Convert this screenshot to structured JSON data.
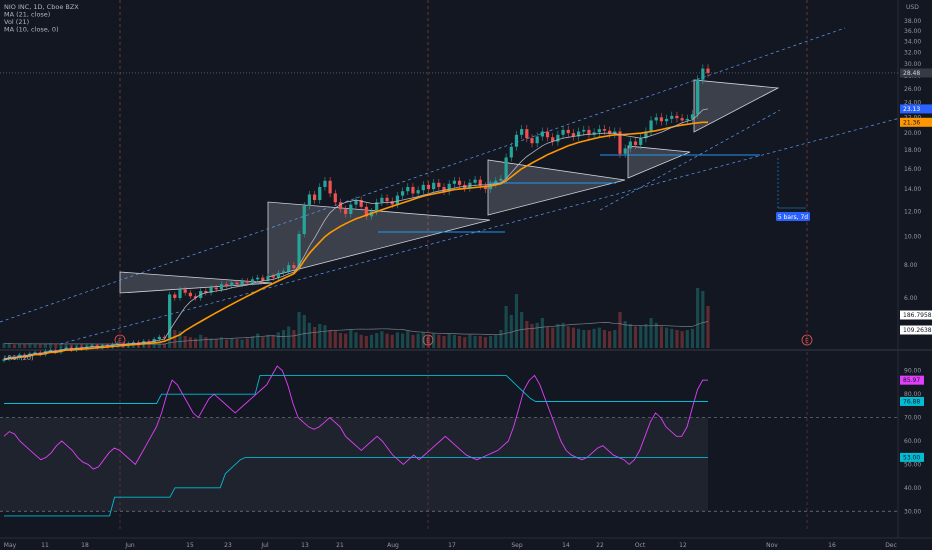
{
  "header": {
    "legend": [
      "NIO INC, 1D, Cboe BZX",
      "MA (21, close)",
      "Vol (21)",
      "MA (10, close, 0)"
    ],
    "currency": "USD",
    "indicator_title": "LRSI (20)"
  },
  "colors": {
    "background": "#131722",
    "up": "#26a69a",
    "down": "#ef5350",
    "ma21": "#ff9800",
    "ma10": "#2196f3",
    "rsi": "#e040fb",
    "band": "#00bcd4",
    "triangle": "#d1d4dc",
    "price_tag": "#2962ff"
  },
  "price_tags": [
    {
      "value": "28.48",
      "bg": "#363a45",
      "fg": "#d1d4dc",
      "at": 28.48
    },
    {
      "value": "23.13",
      "bg": "#2962ff",
      "fg": "#ffffff",
      "at": 23.13
    },
    {
      "value": "21.36",
      "bg": "#ff9800",
      "fg": "#131722",
      "at": 21.36
    },
    {
      "value": "186.7958M",
      "bg": "#ffffff",
      "fg": "#131722",
      "at": 5.0
    },
    {
      "value": "109.2638M",
      "bg": "#ffffff",
      "fg": "#131722",
      "at": 3.8
    }
  ],
  "rsi_tags": [
    {
      "value": "85.97",
      "bg": "#e040fb",
      "fg": "#131722",
      "at": 85.97
    },
    {
      "value": "76.88",
      "bg": "#00bcd4",
      "fg": "#131722",
      "at": 76.88
    },
    {
      "value": "53.00",
      "bg": "#00bcd4",
      "fg": "#131722",
      "at": 53.0
    }
  ],
  "measure_label": "5 bars, 7d",
  "event_marker": "E",
  "chart_data": [
    {
      "type": "candlestick",
      "title": "NIO INC, 1D, Cboe BZX",
      "y_ticks": [
        6.0,
        8.0,
        10.0,
        12.0,
        14.0,
        16.0,
        18.0,
        20.0,
        22.0,
        24.0,
        26.0,
        28.0,
        30.0,
        32.0,
        34.0,
        36.0,
        38.0
      ],
      "y_tick_labels": [
        "6.00",
        "8.00",
        "10.00",
        "12.00",
        "14.00",
        "16.00",
        "18.00",
        "20.00",
        "22.00",
        "24.00",
        "26.00",
        "28.00",
        "30.00",
        "32.00",
        "34.00",
        "36.00",
        "38.00"
      ],
      "x_tick_labels": [
        "May",
        "11",
        "18",
        "Jun",
        "15",
        "23",
        "Jul",
        "13",
        "21",
        "Aug",
        "17",
        "Sep",
        "14",
        "22",
        "Oct",
        "12",
        "Nov",
        "16",
        "Dec"
      ],
      "last_close": 28.48,
      "close": [
        3.0,
        3.1,
        3.05,
        3.2,
        3.15,
        3.25,
        3.3,
        3.2,
        3.35,
        3.4,
        3.3,
        3.45,
        3.5,
        3.4,
        3.5,
        3.45,
        3.55,
        3.6,
        3.5,
        3.6,
        3.55,
        3.65,
        3.7,
        3.6,
        3.7,
        3.75,
        3.65,
        3.8,
        3.75,
        3.9,
        4.0,
        3.95,
        6.2,
        6.0,
        6.5,
        6.3,
        6.1,
        6.0,
        6.4,
        6.3,
        6.6,
        6.5,
        6.8,
        6.7,
        6.9,
        6.8,
        7.0,
        6.9,
        7.1,
        7.2,
        7.0,
        7.3,
        7.2,
        7.5,
        7.6,
        8.0,
        7.8,
        10.2,
        12.5,
        13.5,
        13.0,
        14.2,
        14.8,
        13.6,
        12.8,
        12.2,
        11.8,
        12.6,
        13.0,
        12.4,
        11.6,
        12.0,
        12.8,
        13.2,
        12.9,
        12.6,
        13.4,
        13.8,
        14.2,
        13.6,
        13.9,
        14.4,
        14.0,
        14.6,
        14.2,
        13.8,
        14.5,
        14.8,
        14.4,
        14.1,
        14.6,
        14.9,
        14.3,
        14.0,
        14.5,
        14.8,
        15.0,
        17.2,
        18.4,
        19.8,
        20.5,
        19.4,
        18.8,
        19.6,
        20.2,
        19.5,
        19.0,
        19.8,
        20.4,
        20.0,
        19.6,
        20.2,
        20.4,
        19.8,
        20.1,
        20.5,
        20.3,
        19.9,
        20.2,
        17.6,
        18.2,
        19.0,
        18.6,
        19.4,
        20.2,
        21.6,
        22.0,
        21.5,
        21.8,
        22.2,
        21.9,
        21.6,
        21.8,
        22.4,
        27.4,
        29.2,
        28.48
      ],
      "ma21": [
        3.0,
        3.05,
        3.05,
        3.1,
        3.1,
        3.15,
        3.2,
        3.2,
        3.25,
        3.3,
        3.3,
        3.35,
        3.4,
        3.4,
        3.42,
        3.44,
        3.46,
        3.48,
        3.5,
        3.52,
        3.54,
        3.56,
        3.58,
        3.6,
        3.62,
        3.64,
        3.66,
        3.68,
        3.7,
        3.72,
        3.75,
        3.8,
        3.9,
        4.0,
        4.1,
        4.3,
        4.45,
        4.6,
        4.75,
        4.9,
        5.05,
        5.2,
        5.35,
        5.5,
        5.65,
        5.8,
        5.95,
        6.1,
        6.25,
        6.4,
        6.55,
        6.7,
        6.85,
        7.0,
        7.15,
        7.3,
        7.45,
        7.8,
        8.3,
        8.8,
        9.2,
        9.6,
        10.0,
        10.3,
        10.55,
        10.8,
        11.0,
        11.2,
        11.4,
        11.55,
        11.7,
        11.85,
        12.0,
        12.15,
        12.3,
        12.45,
        12.6,
        12.75,
        12.9,
        13.05,
        13.2,
        13.35,
        13.45,
        13.55,
        13.65,
        13.75,
        13.85,
        13.95,
        14.0,
        14.05,
        14.1,
        14.15,
        14.2,
        14.25,
        14.3,
        14.4,
        14.5,
        14.8,
        15.2,
        15.6,
        16.0,
        16.3,
        16.6,
        16.9,
        17.2,
        17.5,
        17.75,
        18.0,
        18.25,
        18.5,
        18.7,
        18.9,
        19.05,
        19.2,
        19.35,
        19.5,
        19.6,
        19.7,
        19.8,
        19.8,
        19.85,
        19.9,
        19.95,
        20.0,
        20.1,
        20.2,
        20.3,
        20.45,
        20.6,
        20.75,
        20.9,
        21.0,
        21.1,
        21.2,
        21.3,
        21.36,
        21.36
      ],
      "ma10": [
        3.0,
        3.05,
        3.08,
        3.12,
        3.15,
        3.2,
        3.25,
        3.25,
        3.3,
        3.35,
        3.35,
        3.4,
        3.45,
        3.45,
        3.48,
        3.5,
        3.52,
        3.55,
        3.55,
        3.58,
        3.6,
        3.62,
        3.65,
        3.65,
        3.68,
        3.7,
        3.7,
        3.75,
        3.75,
        3.8,
        3.85,
        3.9,
        4.3,
        4.7,
        5.1,
        5.5,
        5.8,
        6.0,
        6.2,
        6.3,
        6.35,
        6.4,
        6.45,
        6.5,
        6.6,
        6.65,
        6.7,
        6.75,
        6.85,
        6.95,
        7.0,
        7.05,
        7.1,
        7.2,
        7.3,
        7.45,
        7.55,
        8.0,
        8.6,
        9.3,
        9.9,
        10.6,
        11.3,
        11.9,
        12.3,
        12.6,
        12.8,
        12.9,
        13.0,
        12.9,
        12.8,
        12.7,
        12.7,
        12.75,
        12.8,
        12.8,
        12.9,
        13.0,
        13.1,
        13.2,
        13.3,
        13.45,
        13.55,
        13.7,
        13.8,
        13.9,
        14.0,
        14.1,
        14.2,
        14.25,
        14.3,
        14.35,
        14.4,
        14.4,
        14.45,
        14.5,
        14.6,
        15.0,
        15.6,
        16.2,
        16.8,
        17.3,
        17.7,
        18.1,
        18.5,
        18.8,
        19.0,
        19.2,
        19.4,
        19.5,
        19.6,
        19.7,
        19.8,
        19.85,
        19.9,
        19.95,
        20.0,
        20.0,
        20.0,
        19.8,
        19.7,
        19.6,
        19.5,
        19.4,
        19.5,
        19.7,
        19.9,
        20.1,
        20.4,
        20.7,
        21.0,
        21.3,
        21.5,
        21.7,
        22.3,
        23.0,
        23.13
      ],
      "volume_rel": [
        0.08,
        0.07,
        0.06,
        0.07,
        0.06,
        0.08,
        0.07,
        0.06,
        0.07,
        0.08,
        0.06,
        0.07,
        0.07,
        0.06,
        0.06,
        0.07,
        0.06,
        0.07,
        0.06,
        0.06,
        0.07,
        0.06,
        0.07,
        0.06,
        0.06,
        0.07,
        0.06,
        0.07,
        0.06,
        0.07,
        0.08,
        0.07,
        0.55,
        0.3,
        0.28,
        0.2,
        0.18,
        0.16,
        0.22,
        0.18,
        0.16,
        0.15,
        0.18,
        0.14,
        0.16,
        0.15,
        0.14,
        0.16,
        0.2,
        0.24,
        0.18,
        0.22,
        0.2,
        0.26,
        0.3,
        0.36,
        0.3,
        0.6,
        0.55,
        0.42,
        0.35,
        0.4,
        0.38,
        0.3,
        0.28,
        0.25,
        0.24,
        0.3,
        0.26,
        0.22,
        0.2,
        0.22,
        0.25,
        0.28,
        0.24,
        0.22,
        0.26,
        0.24,
        0.28,
        0.22,
        0.24,
        0.26,
        0.22,
        0.24,
        0.22,
        0.2,
        0.24,
        0.22,
        0.2,
        0.18,
        0.22,
        0.2,
        0.2,
        0.18,
        0.2,
        0.22,
        0.3,
        0.7,
        0.55,
        0.9,
        0.6,
        0.45,
        0.4,
        0.42,
        0.5,
        0.36,
        0.34,
        0.4,
        0.42,
        0.36,
        0.34,
        0.32,
        0.3,
        0.3,
        0.32,
        0.34,
        0.3,
        0.28,
        0.3,
        0.6,
        0.45,
        0.4,
        0.36,
        0.38,
        0.4,
        0.5,
        0.42,
        0.36,
        0.34,
        0.32,
        0.3,
        0.28,
        0.3,
        0.32,
        1.0,
        0.95,
        0.7
      ]
    },
    {
      "type": "line",
      "title": "LRSI (20)",
      "y_ticks": [
        30,
        40,
        50,
        60,
        70,
        80,
        90
      ],
      "y_tick_labels": [
        "30.00",
        "40.00",
        "50.00",
        "60.00",
        "70.00",
        "80.00",
        "90.00"
      ],
      "ylim": [
        22,
        98
      ],
      "levels": [
        70,
        30
      ],
      "series": [
        {
          "values": [
            62,
            64,
            63,
            60,
            58,
            56,
            54,
            52,
            53,
            55,
            58,
            60,
            58,
            56,
            53,
            51,
            50,
            48,
            49,
            52,
            55,
            57,
            56,
            54,
            52,
            50,
            54,
            58,
            62,
            66,
            72,
            80,
            86,
            84,
            80,
            76,
            72,
            70,
            74,
            78,
            80,
            78,
            76,
            74,
            72,
            74,
            76,
            78,
            80,
            82,
            84,
            88,
            92,
            90,
            84,
            76,
            70,
            68,
            66,
            65,
            66,
            68,
            70,
            68,
            66,
            62,
            60,
            58,
            56,
            58,
            60,
            62,
            60,
            57,
            54,
            52,
            50,
            52,
            54,
            52,
            54,
            56,
            58,
            60,
            62,
            60,
            58,
            56,
            54,
            53,
            52,
            53,
            54,
            55,
            56,
            58,
            60,
            66,
            74,
            82,
            86,
            88,
            84,
            78,
            72,
            66,
            60,
            56,
            54,
            53,
            52,
            53,
            55,
            57,
            58,
            56,
            54,
            53,
            52,
            50,
            52,
            56,
            62,
            68,
            72,
            70,
            66,
            64,
            62,
            62,
            66,
            74,
            82,
            86,
            85.97
          ]
        },
        {
          "values": [
            76,
            76,
            76,
            76,
            76,
            76,
            76,
            76,
            76,
            76,
            76,
            76,
            76,
            76,
            76,
            76,
            76,
            76,
            76,
            76,
            76,
            76,
            76,
            76,
            76,
            76,
            76,
            76,
            76,
            76,
            76,
            76,
            80,
            80,
            80,
            80,
            80,
            80,
            80,
            80,
            80,
            80,
            80,
            80,
            80,
            80,
            80,
            80,
            80,
            80,
            80,
            80,
            88,
            88,
            88,
            88,
            88,
            88,
            88,
            88,
            88,
            88,
            88,
            88,
            88,
            88,
            88,
            88,
            88,
            88,
            88,
            88,
            88,
            88,
            88,
            88,
            88,
            88,
            88,
            88,
            88,
            88,
            88,
            88,
            88,
            88,
            88,
            88,
            88,
            88,
            88,
            88,
            88,
            88,
            88,
            88,
            88,
            88,
            88,
            88,
            88,
            88,
            88,
            86,
            84,
            82,
            80,
            78,
            76.88,
            76.88,
            76.88,
            76.88,
            76.88,
            76.88,
            76.88,
            76.88,
            76.88,
            76.88,
            76.88,
            76.88,
            76.88,
            76.88,
            76.88,
            76.88,
            76.88,
            76.88,
            76.88,
            76.88,
            76.88,
            76.88,
            76.88,
            76.88,
            76.88,
            76.88,
            76.88,
            76.88,
            76.88,
            76.88,
            76.88,
            76.88,
            76.88,
            76.88,
            76.88,
            76.88
          ]
        },
        {
          "values": [
            28,
            28,
            28,
            28,
            28,
            28,
            28,
            28,
            28,
            28,
            28,
            28,
            28,
            28,
            28,
            28,
            28,
            28,
            28,
            28,
            28,
            28,
            36,
            36,
            36,
            36,
            36,
            36,
            36,
            36,
            36,
            36,
            36,
            36,
            40,
            40,
            40,
            40,
            40,
            40,
            40,
            40,
            40,
            40,
            46,
            48,
            50,
            52,
            53,
            53,
            53,
            53,
            53,
            53,
            53,
            53,
            53,
            53,
            53,
            53,
            53,
            53,
            53,
            53,
            53,
            53,
            53,
            53,
            53,
            53,
            53,
            53,
            53,
            53,
            53,
            53,
            53,
            53,
            53,
            53,
            53,
            53,
            53,
            53,
            53,
            53,
            53,
            53,
            53,
            53,
            53,
            53,
            53,
            53,
            53,
            53,
            53,
            53,
            53,
            53,
            53,
            53,
            53,
            53,
            53,
            53,
            53,
            53,
            53,
            53,
            53,
            53,
            53,
            53,
            53,
            53,
            53,
            53,
            53,
            53,
            53,
            53,
            53,
            53,
            53,
            53,
            53,
            53,
            53,
            53,
            53,
            53,
            53,
            53,
            53,
            53,
            53,
            53,
            53,
            53,
            53
          ]
        }
      ]
    }
  ]
}
